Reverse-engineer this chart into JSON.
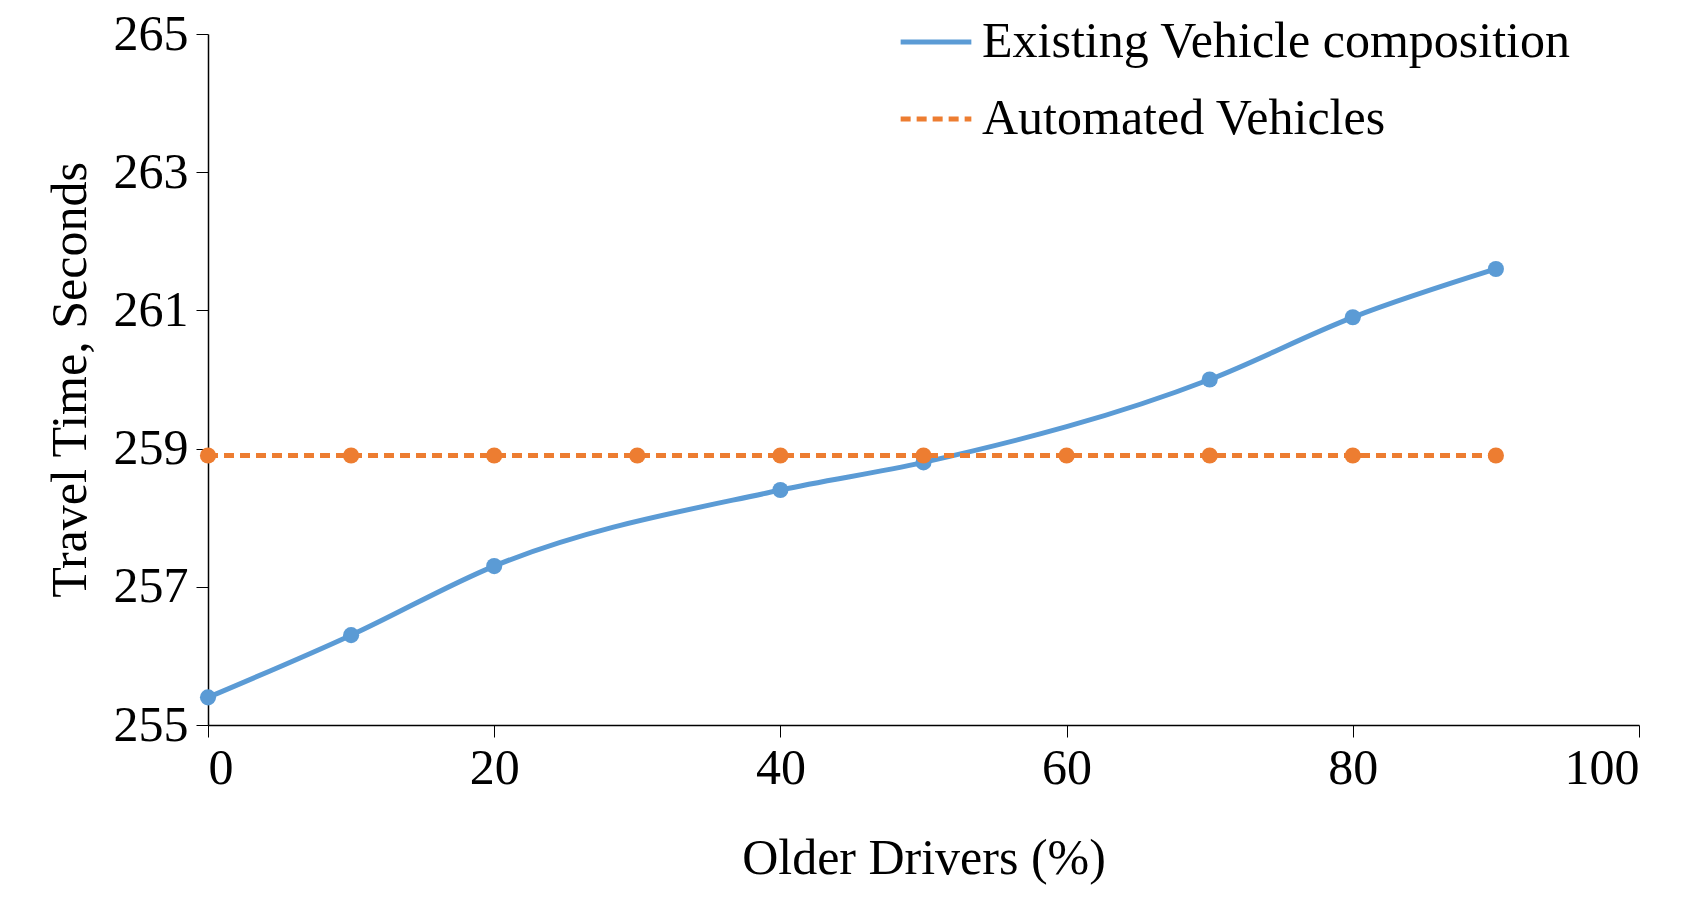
{
  "chart_data": {
    "type": "line",
    "xlabel": "Older Drivers (%)",
    "ylabel": "Travel Time, Seconds",
    "xlim": [
      0,
      100
    ],
    "xticks": [
      0,
      20,
      40,
      60,
      80,
      100
    ],
    "ylim": [
      255,
      265
    ],
    "yticks": [
      255,
      257,
      259,
      261,
      263,
      265
    ],
    "grid": false,
    "legend": "top right",
    "marker": "circle",
    "series": [
      {
        "name": "Existing Vehicle composition",
        "color": "#5b9bd5",
        "line_style": "solid",
        "x": [
          0,
          10,
          20,
          40,
          50,
          70,
          80,
          90
        ],
        "values": [
          255.4,
          256.3,
          257.3,
          258.4,
          258.8,
          260.0,
          260.9,
          261.6
        ]
      },
      {
        "name": "Automated Vehicles",
        "color": "#ed7d31",
        "line_style": "dashed",
        "x": [
          0,
          10,
          20,
          30,
          40,
          50,
          60,
          70,
          80,
          90
        ],
        "values": [
          258.9,
          258.9,
          258.9,
          258.9,
          258.9,
          258.9,
          258.9,
          258.9,
          258.9,
          258.9
        ]
      }
    ]
  }
}
